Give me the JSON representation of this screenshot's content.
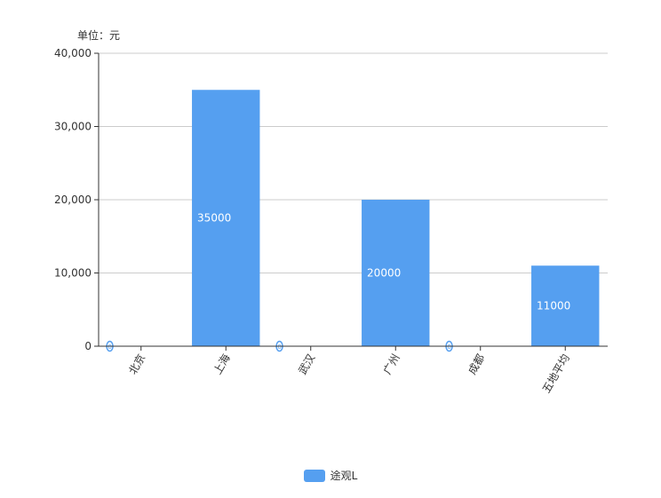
{
  "chart_data": {
    "type": "bar",
    "title": "",
    "unit_label": "单位：元",
    "categories": [
      "北京",
      "上海",
      "武汉",
      "广州",
      "成都",
      "五地平均"
    ],
    "series": [
      {
        "name": "途观L",
        "values": [
          0,
          35000,
          0,
          20000,
          0,
          11000
        ],
        "data_labels": [
          "0",
          "35000",
          "0",
          "20000",
          "0",
          "11000"
        ]
      }
    ],
    "ylim": [
      0,
      40000
    ],
    "yticks": [
      0,
      10000,
      20000,
      30000,
      40000
    ],
    "ytick_labels": [
      "0",
      "10,000",
      "20,000",
      "30,000",
      "40,000"
    ],
    "xlabel": "",
    "ylabel": "",
    "grid": true,
    "legend_position": "bottom-center",
    "colors": {
      "series": "#559ff0",
      "grid": "#cccccc",
      "axis": "#333333",
      "label_on_bar": "#ffffff"
    }
  }
}
